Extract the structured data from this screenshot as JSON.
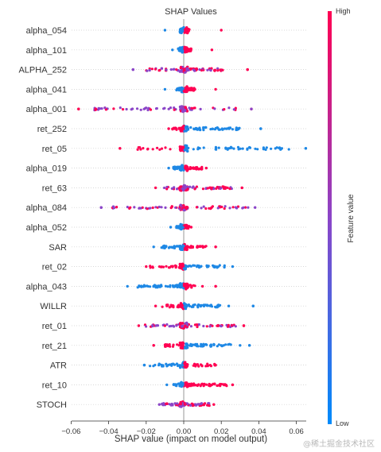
{
  "chart_data": {
    "type": "scatter",
    "subtype": "shap-summary-beeswarm",
    "title": "SHAP Values",
    "xlabel": "SHAP value (impact on model output)",
    "xlim": [
      -0.063,
      0.075
    ],
    "xticks": [
      -0.06,
      -0.04,
      -0.02,
      0.0,
      0.02,
      0.04,
      0.06
    ],
    "xtick_labels": [
      "−0.06",
      "−0.04",
      "−0.02",
      "0.00",
      "0.02",
      "0.04",
      "0.06"
    ],
    "colorbar": {
      "label": "Feature value",
      "high_label": "High",
      "low_label": "Low",
      "high_color": "#ff0052",
      "low_color": "#008bfb"
    },
    "grid": "horizontal-dotted",
    "features": [
      {
        "name": "alpha_054",
        "min": -0.01,
        "max": 0.02,
        "low_side": "neg",
        "dense_low": -0.002,
        "dense_high": 0.003,
        "outliers": []
      },
      {
        "name": "alpha_101",
        "min": -0.006,
        "max": 0.015,
        "low_side": "neg",
        "dense_low": -0.003,
        "dense_high": 0.004,
        "outliers": []
      },
      {
        "name": "ALPHA_252",
        "min": -0.027,
        "max": 0.034,
        "low_side": "mixed",
        "dense_low": -0.02,
        "dense_high": 0.022,
        "outliers": [
          -0.027,
          0.034
        ]
      },
      {
        "name": "alpha_041",
        "min": -0.01,
        "max": 0.017,
        "low_side": "neg",
        "dense_low": -0.004,
        "dense_high": 0.006,
        "outliers": []
      },
      {
        "name": "alpha_001",
        "min": -0.056,
        "max": 0.036,
        "low_side": "mixed",
        "dense_low": -0.05,
        "dense_high": 0.03,
        "outliers": [
          -0.056,
          0.036
        ]
      },
      {
        "name": "ret_252",
        "min": -0.008,
        "max": 0.041,
        "low_side": "pos",
        "dense_low": -0.006,
        "dense_high": 0.03,
        "outliers": [
          0.041
        ]
      },
      {
        "name": "ret_05",
        "min": -0.034,
        "max": 0.065,
        "low_side": "pos",
        "dense_low": -0.025,
        "dense_high": 0.06,
        "outliers": [
          -0.034,
          0.065
        ]
      },
      {
        "name": "alpha_019",
        "min": -0.008,
        "max": 0.012,
        "low_side": "neg",
        "dense_low": -0.006,
        "dense_high": 0.01,
        "outliers": []
      },
      {
        "name": "ret_63",
        "min": -0.015,
        "max": 0.031,
        "low_side": "mixed",
        "dense_low": -0.012,
        "dense_high": 0.026,
        "outliers": [
          0.031
        ]
      },
      {
        "name": "alpha_084",
        "min": -0.044,
        "max": 0.038,
        "low_side": "mixed",
        "dense_low": -0.038,
        "dense_high": 0.036,
        "outliers": [
          -0.044
        ]
      },
      {
        "name": "alpha_052",
        "min": -0.007,
        "max": 0.004,
        "low_side": "neg",
        "dense_low": -0.004,
        "dense_high": 0.003,
        "outliers": []
      },
      {
        "name": "SAR",
        "min": -0.016,
        "max": 0.017,
        "low_side": "neg",
        "dense_low": -0.012,
        "dense_high": 0.012,
        "outliers": [
          0.017
        ]
      },
      {
        "name": "ret_02",
        "min": -0.02,
        "max": 0.026,
        "low_side": "pos",
        "dense_low": -0.018,
        "dense_high": 0.022,
        "outliers": []
      },
      {
        "name": "alpha_043",
        "min": -0.03,
        "max": 0.017,
        "low_side": "neg",
        "dense_low": -0.025,
        "dense_high": 0.006,
        "outliers": [
          0.01,
          0.017
        ]
      },
      {
        "name": "WILLR",
        "min": -0.015,
        "max": 0.037,
        "low_side": "pos",
        "dense_low": -0.012,
        "dense_high": 0.02,
        "outliers": [
          0.024,
          0.037
        ]
      },
      {
        "name": "ret_01",
        "min": -0.024,
        "max": 0.032,
        "low_side": "mixed",
        "dense_low": -0.022,
        "dense_high": 0.028,
        "outliers": [
          0.032
        ]
      },
      {
        "name": "ret_21",
        "min": -0.016,
        "max": 0.035,
        "low_side": "pos",
        "dense_low": -0.01,
        "dense_high": 0.026,
        "outliers": [
          -0.016,
          0.03,
          0.035
        ]
      },
      {
        "name": "ATR",
        "min": -0.021,
        "max": 0.017,
        "low_side": "neg",
        "dense_low": -0.018,
        "dense_high": 0.017,
        "outliers": [
          -0.021
        ]
      },
      {
        "name": "ret_10",
        "min": -0.009,
        "max": 0.026,
        "low_side": "neg",
        "dense_low": -0.006,
        "dense_high": 0.023,
        "outliers": [
          0.026
        ]
      },
      {
        "name": "STOCH",
        "min": -0.013,
        "max": 0.016,
        "low_side": "mixed",
        "dense_low": -0.012,
        "dense_high": 0.014,
        "outliers": []
      }
    ]
  },
  "watermark": "@稀土掘金技术社区"
}
